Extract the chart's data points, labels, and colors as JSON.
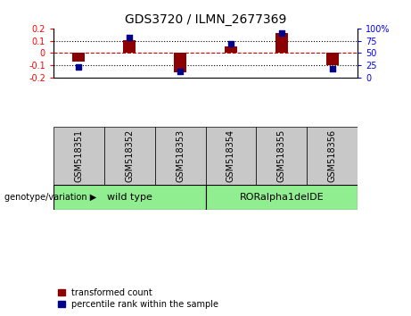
{
  "title": "GDS3720 / ILMN_2677369",
  "samples": [
    "GSM518351",
    "GSM518352",
    "GSM518353",
    "GSM518354",
    "GSM518355",
    "GSM518356"
  ],
  "transformed_count": [
    -0.07,
    0.105,
    -0.155,
    0.055,
    0.165,
    -0.1
  ],
  "percentile_rank": [
    22,
    82,
    12,
    68,
    90,
    18
  ],
  "bar_color": "#8B0000",
  "dot_color": "#00008B",
  "zero_line_color": "#CC0000",
  "grid_color": "#000000",
  "ylim_left": [
    -0.2,
    0.2
  ],
  "ylim_right": [
    0,
    100
  ],
  "yticks_left": [
    -0.2,
    -0.1,
    0.0,
    0.1,
    0.2
  ],
  "yticks_right": [
    0,
    25,
    50,
    75,
    100
  ],
  "bar_width": 0.25,
  "dot_size": 25,
  "fig_width": 4.61,
  "fig_height": 3.54,
  "dpi": 100,
  "label_fontsize": 7,
  "tick_fontsize": 7,
  "title_fontsize": 10
}
